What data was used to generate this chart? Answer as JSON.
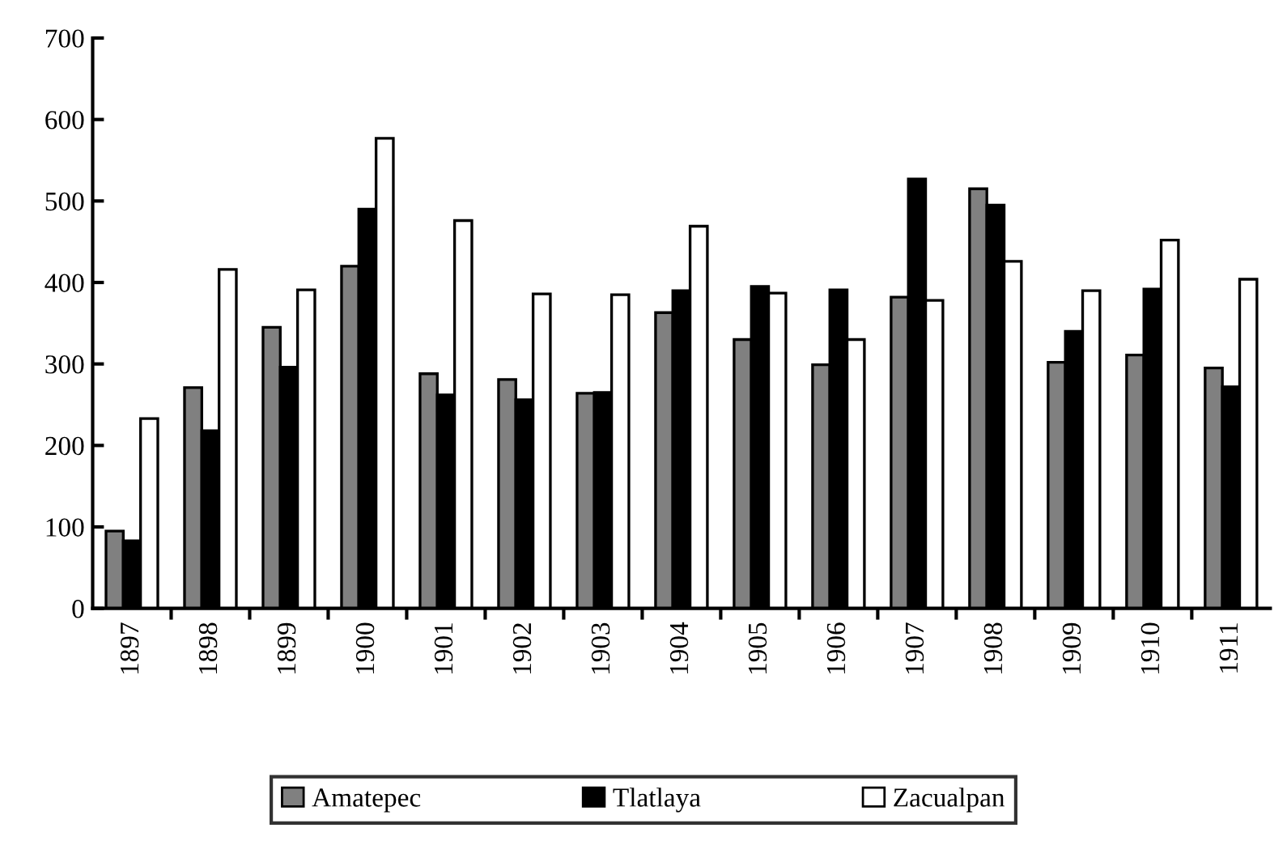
{
  "chart_data": {
    "type": "bar",
    "categories": [
      "1897",
      "1898",
      "1899",
      "1900",
      "1901",
      "1902",
      "1903",
      "1904",
      "1905",
      "1906",
      "1907",
      "1908",
      "1909",
      "1910",
      "1911"
    ],
    "series": [
      {
        "name": "Amatepec",
        "color": "#808080",
        "values": [
          95,
          271,
          345,
          420,
          288,
          281,
          264,
          363,
          330,
          299,
          382,
          515,
          302,
          311,
          295
        ]
      },
      {
        "name": "Tlatlaya",
        "color": "#000000",
        "values": [
          83,
          218,
          296,
          490,
          262,
          256,
          265,
          390,
          395,
          391,
          527,
          495,
          340,
          392,
          272
        ]
      },
      {
        "name": "Zacualpan",
        "color": "#ffffff",
        "values": [
          233,
          416,
          391,
          577,
          476,
          386,
          385,
          469,
          387,
          330,
          378,
          426,
          390,
          452,
          404
        ]
      }
    ],
    "ylim": [
      0,
      700
    ],
    "yticks": [
      0,
      100,
      200,
      300,
      400,
      500,
      600,
      700
    ],
    "grid": false,
    "legend": "bottom"
  }
}
